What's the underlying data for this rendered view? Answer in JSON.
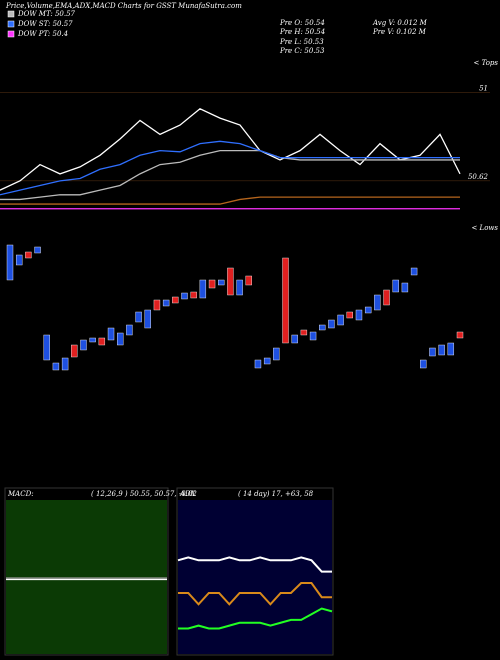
{
  "header": {
    "title": "Price,Volume,EMA,ADX,MACD Charts for GSST MunafaSutra.com",
    "pre_o": "Pre  O: 50.54",
    "pre_h": "Pre  H: 50.54",
    "pre_l": "Pre  L: 50.53",
    "pre_c": "Pre  C: 50.53",
    "avg_v": "Avg V: 0.012  M",
    "pre_v": "Pre  V: 0.102  M"
  },
  "chart_data": [
    {
      "type": "line",
      "ylim": [
        50.43,
        51.14
      ],
      "yticks": [
        51,
        50.62
      ],
      "annotations": [
        "< Tops",
        "< Lows"
      ],
      "series": [
        {
          "color": "#ffffff",
          "values": [
            50.58,
            50.62,
            50.69,
            50.65,
            50.68,
            50.73,
            50.8,
            50.88,
            50.82,
            50.86,
            50.93,
            50.89,
            50.86,
            50.75,
            50.71,
            50.75,
            50.82,
            50.75,
            50.69,
            50.78,
            50.71,
            50.73,
            50.82,
            50.65
          ]
        },
        {
          "name": "DOW MT: 50.57",
          "color": "#bbbbbb",
          "values": [
            50.54,
            50.54,
            50.55,
            50.56,
            50.56,
            50.58,
            50.6,
            50.65,
            50.69,
            50.7,
            50.73,
            50.75,
            50.75,
            50.75,
            50.72,
            50.71,
            50.71,
            50.71,
            50.71,
            50.71,
            50.71,
            50.71,
            50.71,
            50.71
          ]
        },
        {
          "name": "DOW ST: 50.57",
          "color": "#2f6fff",
          "values": [
            50.56,
            50.58,
            50.6,
            50.62,
            50.63,
            50.67,
            50.69,
            50.73,
            50.75,
            50.745,
            50.78,
            50.79,
            50.78,
            50.75,
            50.72,
            50.72,
            50.72,
            50.72,
            50.72,
            50.72,
            50.72,
            50.72,
            50.72,
            50.72
          ]
        },
        {
          "color": "#b5651d",
          "values": [
            50.52,
            50.52,
            50.52,
            50.52,
            50.52,
            50.52,
            50.52,
            50.52,
            50.52,
            50.52,
            50.52,
            50.52,
            50.54,
            50.55,
            50.55,
            50.55,
            50.55,
            50.55,
            50.55,
            50.55,
            50.55,
            50.55,
            50.55,
            50.55
          ]
        },
        {
          "name": "DOW PT: 50.4",
          "color": "#ff33ff",
          "values": [
            50.5,
            50.5,
            50.5,
            50.5,
            50.5,
            50.5,
            50.5,
            50.5,
            50.5,
            50.5,
            50.5,
            50.5,
            50.5,
            50.5,
            50.5,
            50.5,
            50.5,
            50.5,
            50.5,
            50.5,
            50.5,
            50.5,
            50.5,
            50.5
          ]
        }
      ]
    },
    {
      "type": "candlestick",
      "ylim": [
        50.05,
        50.9
      ],
      "up_color": "#1e50e0",
      "down_color": "#e02020",
      "open": [
        50.7,
        50.775,
        50.84,
        50.835,
        50.3,
        50.25,
        50.25,
        50.375,
        50.35,
        50.39,
        50.41,
        50.4,
        50.375,
        50.425,
        50.49,
        50.46,
        50.6,
        50.57,
        50.615,
        50.605,
        50.64,
        50.61,
        50.7,
        50.675,
        50.76,
        50.625,
        50.72,
        50.26,
        50.28,
        50.3,
        50.81,
        50.385,
        50.45,
        50.4,
        50.45,
        50.46,
        50.475,
        50.54,
        50.5,
        50.535,
        50.55,
        50.65,
        50.64,
        50.64,
        50.725,
        50.26,
        50.32,
        50.325,
        50.325,
        50.44
      ],
      "close": [
        50.875,
        50.825,
        50.81,
        50.865,
        50.425,
        50.285,
        50.31,
        50.315,
        50.4,
        50.41,
        50.375,
        50.46,
        50.435,
        50.475,
        50.54,
        50.55,
        50.55,
        50.6,
        50.585,
        50.635,
        50.61,
        50.7,
        50.66,
        50.7,
        50.625,
        50.7,
        50.675,
        50.3,
        50.31,
        50.36,
        50.385,
        50.425,
        50.425,
        50.44,
        50.475,
        50.5,
        50.525,
        50.51,
        50.55,
        50.565,
        50.625,
        50.575,
        50.7,
        50.685,
        50.76,
        50.3,
        50.36,
        50.375,
        50.385,
        50.41
      ]
    },
    {
      "type": "line",
      "title": "MACD:",
      "subtitle": "( 12,26,9 ) 50.55, 50.57, -0.02",
      "ylim": [
        49.5,
        51.5
      ],
      "background": "#0b3a05",
      "series": [
        {
          "color": "#ffffff",
          "values": [
            50.55,
            50.55,
            50.55,
            50.55,
            50.55,
            50.55,
            50.55,
            50.55,
            50.55,
            50.55
          ]
        },
        {
          "color": "#999999",
          "values": [
            50.57,
            50.57,
            50.57,
            50.57,
            50.57,
            50.57,
            50.57,
            50.57,
            50.57,
            50.57
          ]
        }
      ]
    },
    {
      "type": "line",
      "title": "ADX",
      "subtitle": "( 14  day) 17, +63, 58",
      "ylim": [
        0,
        100
      ],
      "background": "#000033",
      "series": [
        {
          "color": "#ffffff",
          "values": [
            66,
            68,
            66,
            66,
            66,
            68,
            66,
            66,
            68,
            66,
            66,
            66,
            68,
            66,
            58,
            58
          ]
        },
        {
          "color": "#d98a1a",
          "values": [
            43,
            43,
            35,
            43,
            43,
            35,
            43,
            43,
            43,
            35,
            43,
            43,
            50,
            50,
            40,
            40
          ]
        },
        {
          "color": "#22ff22",
          "values": [
            18,
            18,
            20,
            18,
            18,
            20,
            22,
            22,
            22,
            20,
            22,
            24,
            24,
            28,
            32,
            30
          ]
        }
      ]
    }
  ]
}
